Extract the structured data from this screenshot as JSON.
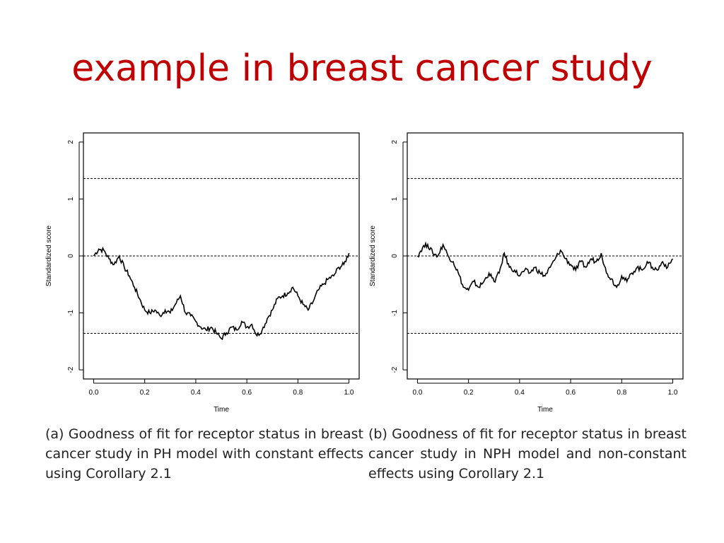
{
  "slide": {
    "title": "example in breast cancer study"
  },
  "captions": [
    "(a) Goodness of fit for receptor status in breast cancer study in PH model with constant effects using Corollary 2.1",
    "(b) Goodness of fit for receptor status in breast cancer study in NPH model and non-constant effects using Corollary 2.1"
  ],
  "chart_data": [
    {
      "type": "line",
      "xlabel": "Time",
      "ylabel": "Standardized score",
      "xlim": [
        0.0,
        1.0
      ],
      "ylim": [
        -2,
        2
      ],
      "xticks": [
        "0.0",
        "0.2",
        "0.4",
        "0.6",
        "0.8",
        "1.0"
      ],
      "yticks": [
        "-2",
        "-1",
        "0",
        "1",
        "2"
      ],
      "reference_lines": [
        1.36,
        0,
        -1.36
      ],
      "series": [
        {
          "x": [
            0.0,
            0.02,
            0.04,
            0.06,
            0.08,
            0.1,
            0.12,
            0.14,
            0.16,
            0.18,
            0.2,
            0.22,
            0.24,
            0.26,
            0.28,
            0.3,
            0.32,
            0.34,
            0.36,
            0.38,
            0.4,
            0.42,
            0.44,
            0.46,
            0.48,
            0.5,
            0.52,
            0.54,
            0.56,
            0.58,
            0.6,
            0.62,
            0.64,
            0.66,
            0.68,
            0.7,
            0.72,
            0.74,
            0.76,
            0.78,
            0.8,
            0.82,
            0.84,
            0.86,
            0.88,
            0.9,
            0.92,
            0.94,
            0.96,
            0.98,
            1.0
          ],
          "y": [
            0.0,
            0.12,
            0.1,
            -0.05,
            -0.15,
            0.0,
            -0.2,
            -0.35,
            -0.55,
            -0.75,
            -0.95,
            -1.0,
            -0.95,
            -1.05,
            -0.95,
            -1.0,
            -0.85,
            -0.7,
            -1.0,
            -1.05,
            -1.15,
            -1.25,
            -1.3,
            -1.25,
            -1.35,
            -1.45,
            -1.35,
            -1.25,
            -1.3,
            -1.15,
            -1.25,
            -1.2,
            -1.4,
            -1.3,
            -1.1,
            -0.95,
            -0.75,
            -0.7,
            -0.65,
            -0.55,
            -0.7,
            -0.85,
            -0.95,
            -0.8,
            -0.6,
            -0.5,
            -0.4,
            -0.35,
            -0.2,
            -0.15,
            0.05
          ]
        }
      ]
    },
    {
      "type": "line",
      "xlabel": "Time",
      "ylabel": "Standardized score",
      "xlim": [
        0.0,
        1.0
      ],
      "ylim": [
        -2,
        2
      ],
      "xticks": [
        "0.0",
        "0.2",
        "0.4",
        "0.6",
        "0.8",
        "1.0"
      ],
      "yticks": [
        "-2",
        "-1",
        "0",
        "1",
        "2"
      ],
      "reference_lines": [
        1.36,
        0,
        -1.36
      ],
      "series": [
        {
          "x": [
            0.0,
            0.02,
            0.04,
            0.06,
            0.08,
            0.1,
            0.12,
            0.14,
            0.16,
            0.18,
            0.2,
            0.22,
            0.24,
            0.26,
            0.28,
            0.3,
            0.32,
            0.34,
            0.36,
            0.38,
            0.4,
            0.42,
            0.44,
            0.46,
            0.48,
            0.5,
            0.52,
            0.54,
            0.56,
            0.58,
            0.6,
            0.62,
            0.64,
            0.66,
            0.68,
            0.7,
            0.72,
            0.74,
            0.76,
            0.78,
            0.8,
            0.82,
            0.84,
            0.86,
            0.88,
            0.9,
            0.92,
            0.94,
            0.96,
            0.98,
            1.0
          ],
          "y": [
            0.0,
            0.15,
            0.2,
            0.05,
            0.0,
            0.2,
            0.0,
            -0.1,
            -0.3,
            -0.55,
            -0.6,
            -0.45,
            -0.55,
            -0.45,
            -0.3,
            -0.45,
            -0.3,
            0.05,
            -0.2,
            -0.25,
            -0.35,
            -0.25,
            -0.3,
            -0.2,
            -0.3,
            -0.35,
            -0.2,
            -0.05,
            0.1,
            -0.05,
            -0.15,
            -0.25,
            -0.1,
            -0.2,
            -0.05,
            -0.1,
            0.05,
            -0.3,
            -0.4,
            -0.55,
            -0.35,
            -0.45,
            -0.3,
            -0.2,
            -0.25,
            -0.1,
            -0.2,
            -0.25,
            -0.1,
            -0.2,
            -0.05
          ]
        }
      ]
    }
  ]
}
